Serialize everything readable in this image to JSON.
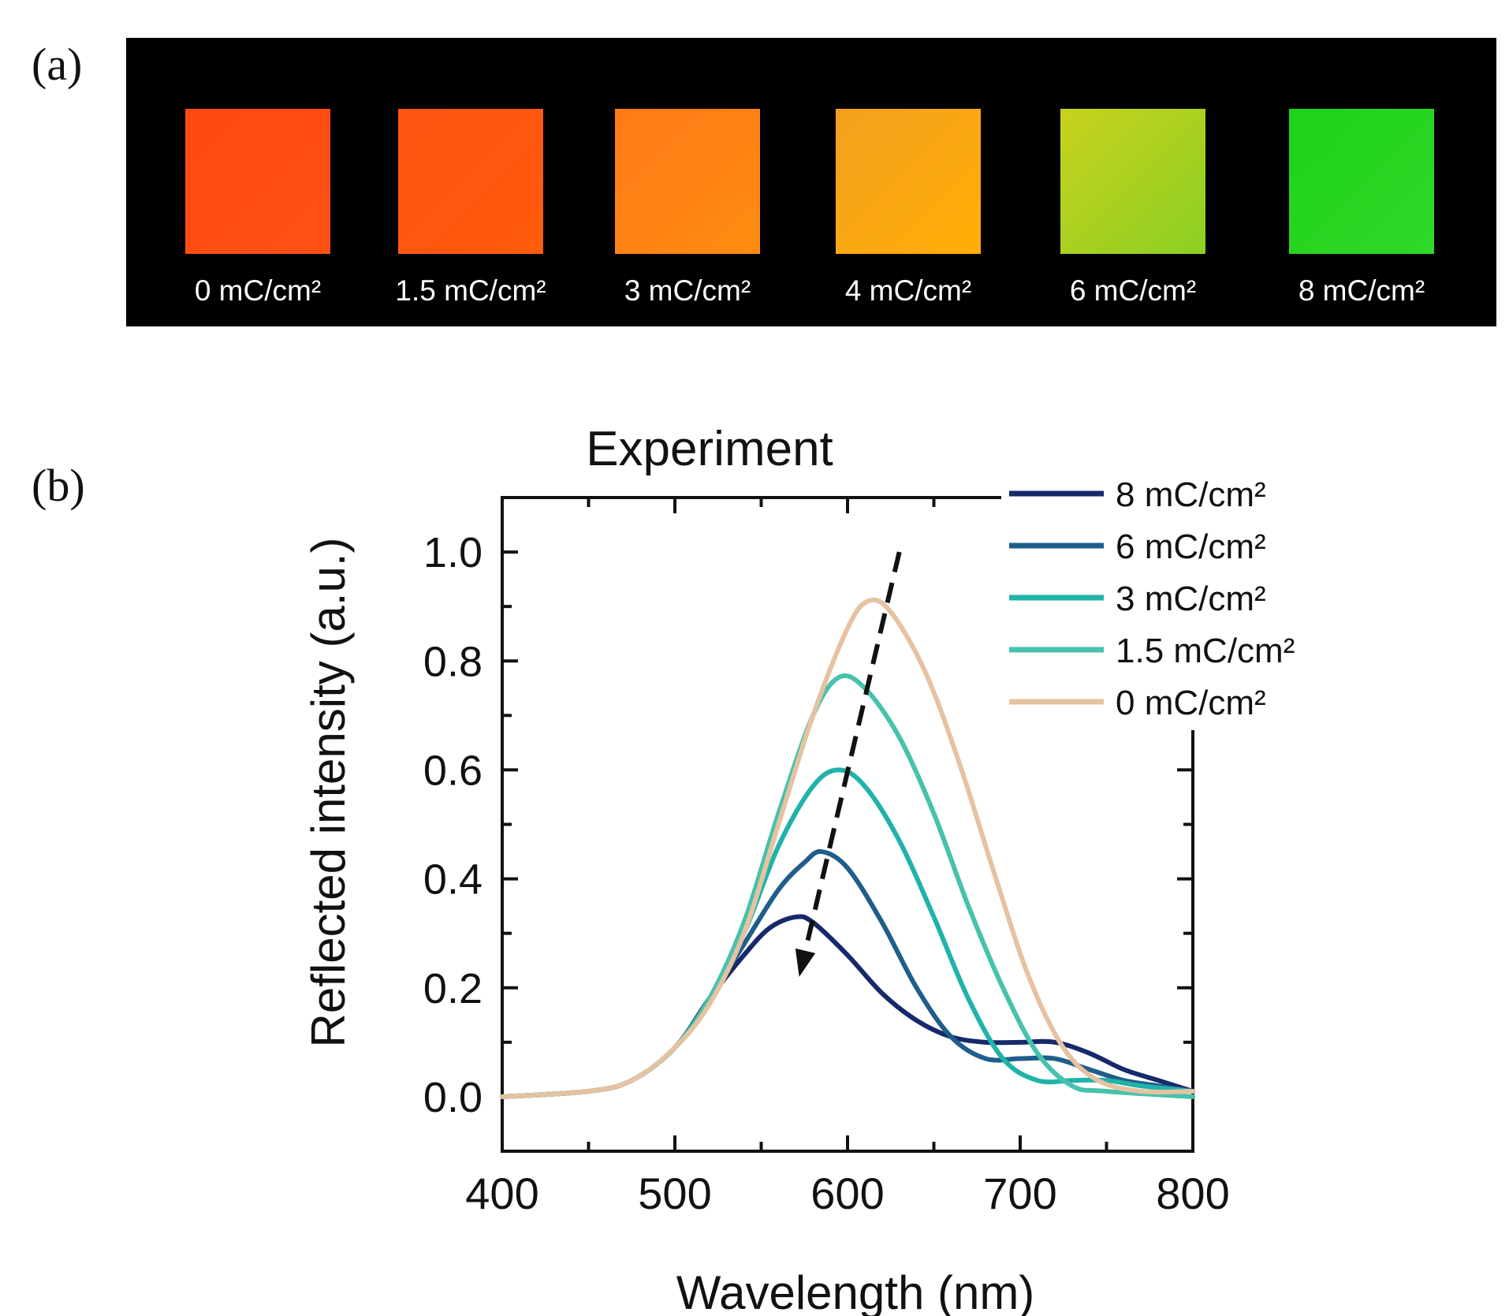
{
  "panel_a": {
    "label": "(a)",
    "swatches": [
      {
        "label": "0 mC/cm²",
        "color": "#ff4a10",
        "color2": "#ff5014"
      },
      {
        "label": "1.5 mC/cm²",
        "color": "#ff5312",
        "color2": "#ff5c0c"
      },
      {
        "label": "3 mC/cm²",
        "color": "#ff7a18",
        "color2": "#ff8c10"
      },
      {
        "label": "4 mC/cm²",
        "color": "#f4a020",
        "color2": "#ffae04"
      },
      {
        "label": "6 mC/cm²",
        "color": "#c8d21e",
        "color2": "#8ccf22"
      },
      {
        "label": "8 mC/cm²",
        "color": "#1ed21a",
        "color2": "#30d828"
      }
    ]
  },
  "panel_b": {
    "label": "(b)"
  },
  "chart_data": {
    "type": "line",
    "title": "Experiment",
    "xlabel": "Wavelength (nm)",
    "ylabel": "Reflected intensity (a.u.)",
    "xlim": [
      400,
      800
    ],
    "ylim": [
      -0.1,
      1.1
    ],
    "xticks": [
      400,
      500,
      600,
      700,
      800
    ],
    "yticks": [
      "0.0",
      "0.2",
      "0.4",
      "0.6",
      "0.8",
      "1.0"
    ],
    "ytick_values": [
      0,
      0.2,
      0.4,
      0.6,
      0.8,
      1.0
    ],
    "grid": false,
    "legend_position": "top-right",
    "series": [
      {
        "name": "8 mC/cm²",
        "color": "#16296b",
        "points": [
          [
            400,
            0
          ],
          [
            450,
            0.01
          ],
          [
            475,
            0.03
          ],
          [
            500,
            0.09
          ],
          [
            520,
            0.18
          ],
          [
            540,
            0.26
          ],
          [
            555,
            0.31
          ],
          [
            570,
            0.33
          ],
          [
            580,
            0.32
          ],
          [
            600,
            0.26
          ],
          [
            620,
            0.19
          ],
          [
            640,
            0.14
          ],
          [
            660,
            0.11
          ],
          [
            680,
            0.1
          ],
          [
            700,
            0.1
          ],
          [
            720,
            0.1
          ],
          [
            740,
            0.08
          ],
          [
            760,
            0.05
          ],
          [
            780,
            0.03
          ],
          [
            800,
            0.01
          ]
        ]
      },
      {
        "name": "6 mC/cm²",
        "color": "#1f5e8a",
        "points": [
          [
            400,
            0
          ],
          [
            450,
            0.01
          ],
          [
            475,
            0.03
          ],
          [
            500,
            0.09
          ],
          [
            520,
            0.18
          ],
          [
            540,
            0.28
          ],
          [
            560,
            0.38
          ],
          [
            575,
            0.43
          ],
          [
            585,
            0.45
          ],
          [
            600,
            0.42
          ],
          [
            620,
            0.32
          ],
          [
            640,
            0.2
          ],
          [
            660,
            0.11
          ],
          [
            680,
            0.07
          ],
          [
            700,
            0.07
          ],
          [
            720,
            0.07
          ],
          [
            740,
            0.05
          ],
          [
            760,
            0.03
          ],
          [
            780,
            0.02
          ],
          [
            800,
            0.01
          ]
        ]
      },
      {
        "name": "3 mC/cm²",
        "color": "#1fb3aa",
        "points": [
          [
            400,
            0
          ],
          [
            450,
            0.01
          ],
          [
            475,
            0.03
          ],
          [
            500,
            0.09
          ],
          [
            520,
            0.18
          ],
          [
            540,
            0.3
          ],
          [
            560,
            0.46
          ],
          [
            580,
            0.57
          ],
          [
            595,
            0.6
          ],
          [
            610,
            0.57
          ],
          [
            630,
            0.47
          ],
          [
            650,
            0.33
          ],
          [
            670,
            0.18
          ],
          [
            690,
            0.07
          ],
          [
            710,
            0.03
          ],
          [
            730,
            0.03
          ],
          [
            750,
            0.03
          ],
          [
            770,
            0.02
          ],
          [
            800,
            0.01
          ]
        ]
      },
      {
        "name": "1.5 mC/cm²",
        "color": "#47c2ac",
        "points": [
          [
            400,
            0
          ],
          [
            450,
            0.01
          ],
          [
            475,
            0.03
          ],
          [
            500,
            0.09
          ],
          [
            520,
            0.18
          ],
          [
            540,
            0.32
          ],
          [
            560,
            0.52
          ],
          [
            580,
            0.7
          ],
          [
            595,
            0.77
          ],
          [
            610,
            0.75
          ],
          [
            630,
            0.66
          ],
          [
            650,
            0.52
          ],
          [
            670,
            0.35
          ],
          [
            690,
            0.2
          ],
          [
            710,
            0.08
          ],
          [
            730,
            0.02
          ],
          [
            750,
            0.01
          ],
          [
            800,
            0
          ]
        ]
      },
      {
        "name": "0 mC/cm²",
        "color": "#e6c2a0",
        "points": [
          [
            400,
            0
          ],
          [
            450,
            0.01
          ],
          [
            475,
            0.03
          ],
          [
            500,
            0.09
          ],
          [
            520,
            0.17
          ],
          [
            540,
            0.3
          ],
          [
            560,
            0.5
          ],
          [
            580,
            0.7
          ],
          [
            600,
            0.86
          ],
          [
            612,
            0.91
          ],
          [
            625,
            0.89
          ],
          [
            645,
            0.78
          ],
          [
            665,
            0.61
          ],
          [
            685,
            0.41
          ],
          [
            705,
            0.22
          ],
          [
            725,
            0.09
          ],
          [
            745,
            0.03
          ],
          [
            770,
            0.01
          ],
          [
            800,
            0.01
          ]
        ]
      }
    ],
    "annotation": {
      "type": "dashed-arrow",
      "from": [
        630,
        1.0
      ],
      "to": [
        572,
        0.22
      ]
    }
  }
}
